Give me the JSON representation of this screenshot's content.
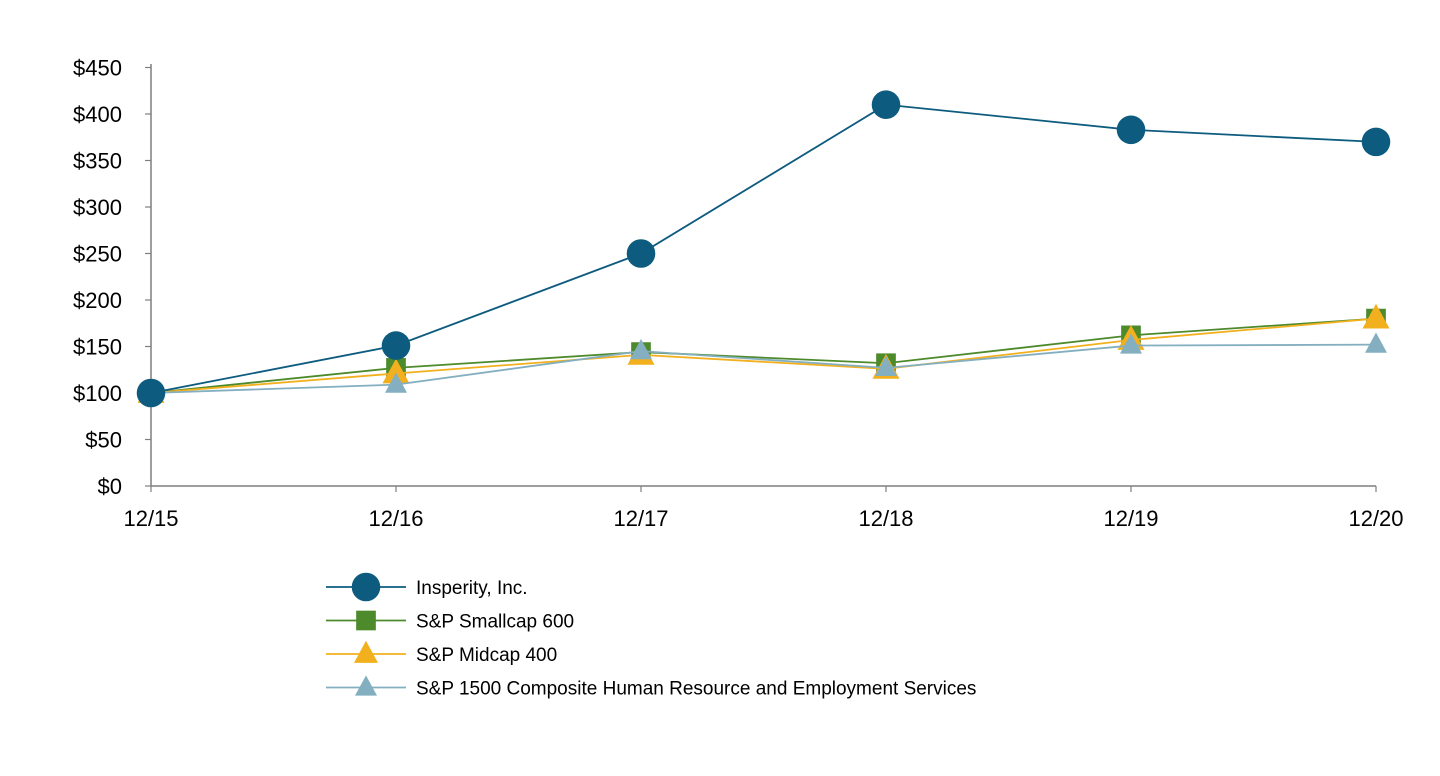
{
  "chart_data": {
    "type": "line",
    "title": "",
    "xlabel": "",
    "ylabel": "",
    "categories": [
      "12/15",
      "12/16",
      "12/17",
      "12/18",
      "12/19",
      "12/20"
    ],
    "ylim": [
      0,
      450
    ],
    "yticks": [
      0,
      50,
      100,
      150,
      200,
      250,
      300,
      350,
      400,
      450
    ],
    "ytick_labels": [
      "$0",
      "$50",
      "$100",
      "$150",
      "$200",
      "$250",
      "$300",
      "$350",
      "$400",
      "$450"
    ],
    "grid": false,
    "legend_position": "bottom-center",
    "series": [
      {
        "name": "Insperity, Inc.",
        "marker": "circle",
        "color": "#0d5b7e",
        "values": [
          100,
          151,
          250,
          410,
          383,
          370
        ]
      },
      {
        "name": "S&P Smallcap 600",
        "marker": "square",
        "color": "#4d8a2b",
        "values": [
          100,
          127,
          144,
          132,
          162,
          180
        ]
      },
      {
        "name": "S&P Midcap 400",
        "marker": "triangle",
        "color": "#f2b01e",
        "values": [
          100,
          121,
          141,
          126,
          157,
          180
        ]
      },
      {
        "name": "S&P 1500 Composite Human Resource and Employment Services",
        "marker": "triangle",
        "color": "#84afc0",
        "values": [
          100,
          109,
          145,
          127,
          151,
          152
        ]
      }
    ]
  }
}
